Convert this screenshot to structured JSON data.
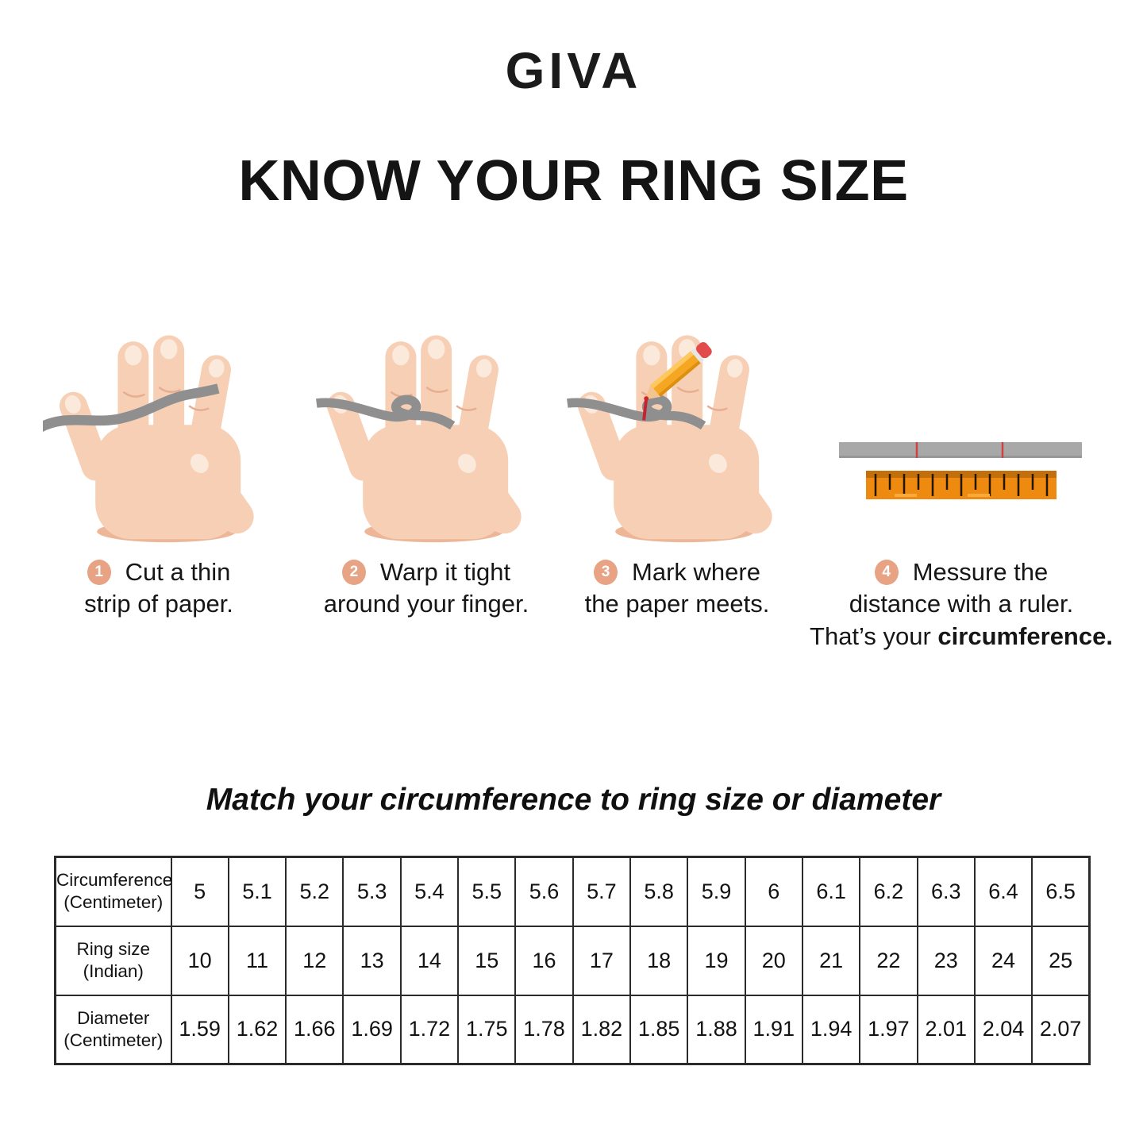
{
  "logo_text": "GIVA",
  "heading": "KNOW YOUR RING SIZE",
  "steps": [
    {
      "number": "1",
      "illustration": "hand-paper-strip-icon",
      "line1": "Cut a thin",
      "line2": "strip of paper."
    },
    {
      "number": "2",
      "illustration": "hand-wrapped-strip-icon",
      "line1": "Warp it tight",
      "line2": "around your finger."
    },
    {
      "number": "3",
      "illustration": "hand-pencil-mark-icon",
      "line1": "Mark where",
      "line2": "the paper meets."
    },
    {
      "number": "4",
      "illustration": "paper-strip-ruler-icon",
      "line1": "Messure the",
      "line2": "distance with a ruler.",
      "line3_prefix": "That’s your ",
      "line3_bold": "circumference."
    }
  ],
  "subtitle": "Match your circumference to ring size or diameter",
  "table": {
    "rows": [
      {
        "label_line1": "Circumference",
        "label_line2": "(Centimeter)",
        "values": [
          "5",
          "5.1",
          "5.2",
          "5.3",
          "5.4",
          "5.5",
          "5.6",
          "5.7",
          "5.8",
          "5.9",
          "6",
          "6.1",
          "6.2",
          "6.3",
          "6.4",
          "6.5"
        ]
      },
      {
        "label_line1": "Ring size",
        "label_line2": "(Indian)",
        "values": [
          "10",
          "11",
          "12",
          "13",
          "14",
          "15",
          "16",
          "17",
          "18",
          "19",
          "20",
          "21",
          "22",
          "23",
          "24",
          "25"
        ]
      },
      {
        "label_line1": "Diameter",
        "label_line2": "(Centimeter)",
        "values": [
          "1.59",
          "1.62",
          "1.66",
          "1.69",
          "1.72",
          "1.75",
          "1.78",
          "1.82",
          "1.85",
          "1.88",
          "1.91",
          "1.94",
          "1.97",
          "2.01",
          "2.04",
          "2.07"
        ]
      }
    ]
  },
  "colors": {
    "badge": "#E8A385",
    "skin": "#F7CFB5",
    "skin_shade": "#EDB697",
    "strip_gray": "#8F8F8F",
    "ruler_orange": "#EE8A10",
    "pencil_yellow": "#F5A623",
    "pencil_eraser": "#E14B4B",
    "mark_red": "#C42430",
    "text": "#141414"
  }
}
